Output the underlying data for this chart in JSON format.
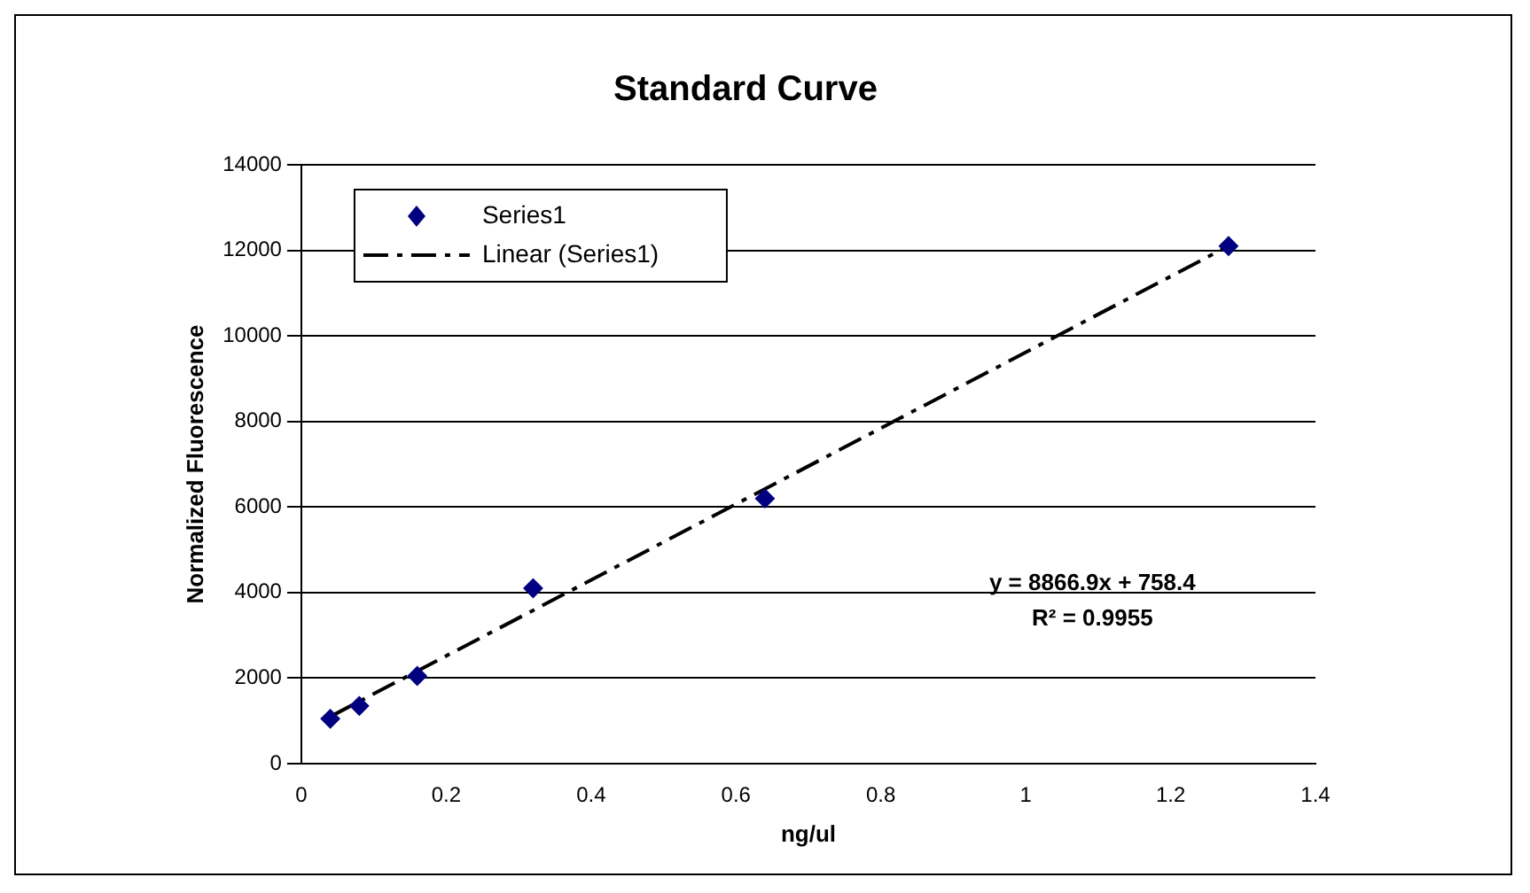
{
  "chart_data": {
    "type": "scatter",
    "title": "Standard Curve",
    "xlabel": "ng/ul",
    "ylabel": "Normalized Fluorescence",
    "xlim": [
      0,
      1.4
    ],
    "xticks": [
      0,
      0.2,
      0.4,
      0.6,
      0.8,
      1,
      1.2,
      1.4
    ],
    "ylim": [
      0,
      14000
    ],
    "yticks": [
      0,
      2000,
      4000,
      6000,
      8000,
      10000,
      12000,
      14000
    ],
    "grid": "y",
    "legend": "top left",
    "marker": "diamond",
    "series": [
      {
        "name": "Series1",
        "color": "#000080",
        "x": [
          0.04,
          0.08,
          0.16,
          0.32,
          0.64,
          1.28
        ],
        "values": [
          1050,
          1350,
          2050,
          4100,
          6200,
          12100
        ]
      },
      {
        "name": "Linear (Series1)",
        "type": "line",
        "color": "#000000",
        "line_style": "dashed",
        "marker": "none",
        "x": [
          0.04,
          1.28
        ],
        "values": [
          1100,
          12100
        ]
      }
    ],
    "annotations": [
      "y = 8866.9x + 758.4",
      "R² = 0.9955"
    ]
  }
}
